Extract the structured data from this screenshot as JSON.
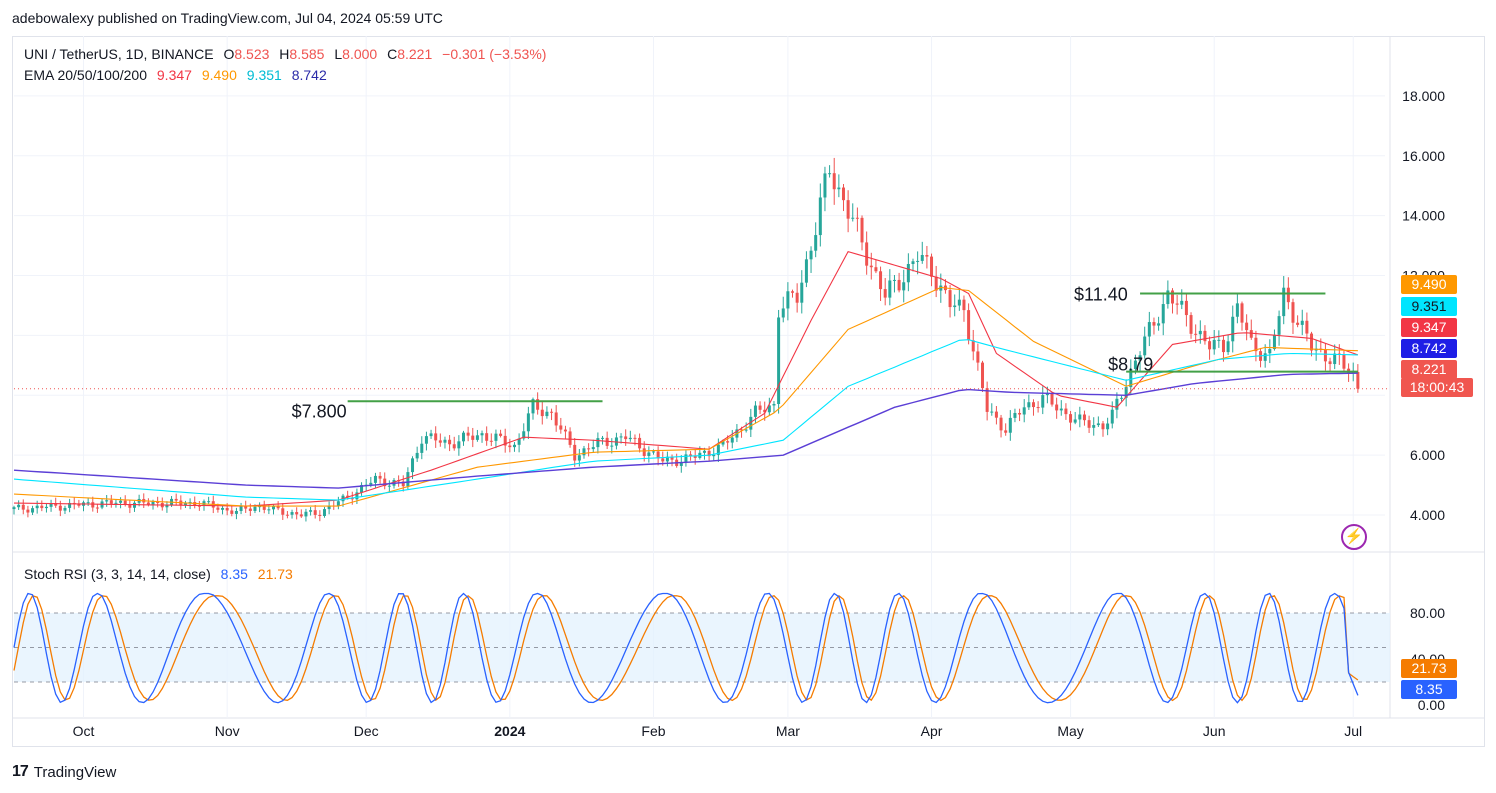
{
  "header": {
    "published": "adebowalexy published on TradingView.com, Jul 04, 2024 05:59 UTC"
  },
  "legend": {
    "symbol": "UNI / TetherUS, 1D, BINANCE",
    "o_label": "O",
    "o": "8.523",
    "h_label": "H",
    "h": "8.585",
    "l_label": "L",
    "l": "8.000",
    "c_label": "C",
    "c": "8.221",
    "change": "−0.301 (−3.53%)",
    "ema_label": "EMA 20/50/100/200",
    "ema20": "9.347",
    "ema50": "9.490",
    "ema100": "9.351",
    "ema200": "8.742"
  },
  "stoch": {
    "label": "Stoch RSI (3, 3, 14, 14, close)",
    "k": "8.35",
    "d": "21.73"
  },
  "annotations": {
    "level_low": "$7.800",
    "level_high": "$11.40",
    "level_mid": "$8.79"
  },
  "price_tags": {
    "ema50": "9.490",
    "ema100": "9.351",
    "ema20": "9.347",
    "ema200": "8.742",
    "last": "8.221",
    "countdown": "18:00:43",
    "stoch_d": "21.73",
    "stoch_k": "8.35"
  },
  "colors": {
    "up": "#26a69a",
    "down": "#ef5350",
    "ema20": "#f23645",
    "ema50": "#ff9800",
    "ema100": "#00e5ff",
    "ema200": "#5b3fd6",
    "k": "#2962ff",
    "d": "#f57c00",
    "level": "#43a047"
  },
  "footer": {
    "brand": "TradingView"
  },
  "chart_data": {
    "type": "candlestick",
    "x_ticks": [
      "Oct",
      "Nov",
      "Dec",
      "2024",
      "Feb",
      "Mar",
      "Apr",
      "May",
      "Jun",
      "Jul"
    ],
    "y_ticks": [
      "18.000",
      "16.000",
      "14.000",
      "12.000",
      "6.000",
      "4.000"
    ],
    "ylim": [
      3.0,
      19.2
    ],
    "anchors": [
      [
        0,
        4.2
      ],
      [
        20,
        4.4
      ],
      [
        40,
        4.4
      ],
      [
        48,
        4.1
      ],
      [
        52,
        4.3
      ],
      [
        62,
        4.0
      ],
      [
        66,
        4.1
      ],
      [
        72,
        4.6
      ],
      [
        78,
        5.2
      ],
      [
        84,
        5.0
      ],
      [
        88,
        6.6
      ],
      [
        94,
        6.4
      ],
      [
        101,
        6.7
      ],
      [
        108,
        6.3
      ],
      [
        112,
        7.6
      ],
      [
        116,
        7.4
      ],
      [
        121,
        6.0
      ],
      [
        126,
        6.4
      ],
      [
        132,
        6.6
      ],
      [
        140,
        5.8
      ],
      [
        146,
        5.9
      ],
      [
        153,
        6.3
      ],
      [
        160,
        7.4
      ],
      [
        164,
        7.7
      ],
      [
        165,
        10.9
      ],
      [
        169,
        11.3
      ],
      [
        173,
        13.6
      ],
      [
        176,
        15.6
      ],
      [
        181,
        13.8
      ],
      [
        188,
        11.3
      ],
      [
        195,
        12.6
      ],
      [
        198,
        12.2
      ],
      [
        202,
        11.0
      ],
      [
        205,
        10.9
      ],
      [
        210,
        7.5
      ],
      [
        214,
        6.9
      ],
      [
        218,
        7.6
      ],
      [
        222,
        7.9
      ],
      [
        230,
        7.1
      ],
      [
        235,
        7.0
      ],
      [
        237,
        7.3
      ],
      [
        242,
        9.2
      ],
      [
        246,
        10.4
      ],
      [
        249,
        11.4
      ],
      [
        253,
        10.6
      ],
      [
        258,
        9.6
      ],
      [
        261,
        9.7
      ],
      [
        264,
        10.9
      ],
      [
        267,
        9.7
      ],
      [
        271,
        9.3
      ],
      [
        274,
        11.4
      ],
      [
        276,
        10.8
      ],
      [
        280,
        9.6
      ],
      [
        285,
        9.2
      ],
      [
        289,
        8.7
      ],
      [
        290,
        8.22
      ]
    ],
    "ema": {
      "ema20": [
        [
          0,
          4.4
        ],
        [
          50,
          4.3
        ],
        [
          70,
          4.5
        ],
        [
          90,
          5.5
        ],
        [
          110,
          6.6
        ],
        [
          125,
          6.5
        ],
        [
          150,
          6.2
        ],
        [
          162,
          7.4
        ],
        [
          172,
          10.5
        ],
        [
          180,
          12.8
        ],
        [
          200,
          11.9
        ],
        [
          206,
          11.4
        ],
        [
          212,
          9.4
        ],
        [
          225,
          8.0
        ],
        [
          238,
          7.6
        ],
        [
          250,
          9.7
        ],
        [
          265,
          10.1
        ],
        [
          280,
          9.9
        ],
        [
          290,
          9.35
        ]
      ],
      "ema50": [
        [
          0,
          4.7
        ],
        [
          50,
          4.3
        ],
        [
          70,
          4.3
        ],
        [
          100,
          5.6
        ],
        [
          125,
          6.1
        ],
        [
          150,
          6.2
        ],
        [
          165,
          7.5
        ],
        [
          180,
          10.2
        ],
        [
          200,
          11.6
        ],
        [
          206,
          11.5
        ],
        [
          220,
          9.8
        ],
        [
          240,
          8.3
        ],
        [
          255,
          9.0
        ],
        [
          270,
          9.6
        ],
        [
          290,
          9.49
        ]
      ],
      "ema100": [
        [
          0,
          5.2
        ],
        [
          50,
          4.6
        ],
        [
          70,
          4.5
        ],
        [
          100,
          5.2
        ],
        [
          125,
          5.8
        ],
        [
          150,
          6.0
        ],
        [
          166,
          6.5
        ],
        [
          180,
          8.3
        ],
        [
          205,
          9.9
        ],
        [
          212,
          9.6
        ],
        [
          240,
          8.5
        ],
        [
          260,
          9.2
        ],
        [
          275,
          9.4
        ],
        [
          290,
          9.35
        ]
      ],
      "ema200": [
        [
          0,
          5.5
        ],
        [
          50,
          5.0
        ],
        [
          70,
          4.9
        ],
        [
          100,
          5.3
        ],
        [
          125,
          5.6
        ],
        [
          150,
          5.8
        ],
        [
          166,
          6.0
        ],
        [
          190,
          7.6
        ],
        [
          205,
          8.2
        ],
        [
          215,
          8.1
        ],
        [
          240,
          8.0
        ],
        [
          255,
          8.4
        ],
        [
          275,
          8.7
        ],
        [
          290,
          8.74
        ]
      ]
    },
    "levels": [
      {
        "label": "$7.800",
        "value": 7.8,
        "from": 72,
        "to": 127
      },
      {
        "label": "$11.40",
        "value": 11.4,
        "from": 243,
        "to": 283
      },
      {
        "label": "$8.79",
        "value": 8.79,
        "from": 240,
        "to": 290
      }
    ],
    "last": 8.221,
    "stoch_rsi": {
      "ylim": [
        0,
        100
      ],
      "y_ticks": [
        "80.00",
        "40.00",
        "0.00"
      ],
      "bands": [
        80,
        50,
        20
      ],
      "k_last": 8.35,
      "d_last": 21.73
    }
  }
}
